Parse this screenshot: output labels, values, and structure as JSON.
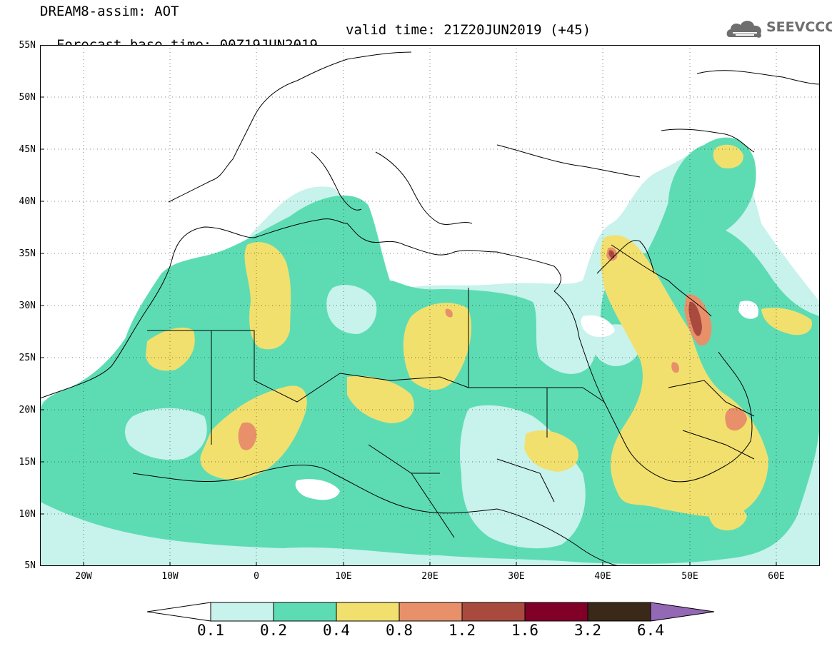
{
  "header": {
    "title": "DREAM8-assim: AOT",
    "base_time": "Forecast base time: 00Z19JUN2019",
    "valid_time": "valid time: 21Z20JUN2019 (+45)"
  },
  "logo": {
    "text": "SEEVCCC",
    "icon": "cloud-icon",
    "color": "#6e6e6e"
  },
  "map": {
    "lon_range": [
      -25,
      65
    ],
    "lat_range": [
      5,
      55
    ],
    "lat_labels": [
      "55N",
      "50N",
      "45N",
      "40N",
      "35N",
      "30N",
      "25N",
      "20N",
      "15N",
      "10N",
      "5N"
    ],
    "lon_labels": [
      "20W",
      "10W",
      "0",
      "10E",
      "20E",
      "30E",
      "40E",
      "50E",
      "60E"
    ],
    "colors": {
      "c1": "#c8f2ec",
      "c2": "#5ddcb4",
      "c3": "#f2e06e",
      "c4": "#e8906a",
      "c5": "#a84a3e"
    }
  },
  "colorbar": {
    "levels": [
      "0.1",
      "0.2",
      "0.4",
      "0.8",
      "1.2",
      "1.6",
      "3.2",
      "6.4"
    ],
    "colors": [
      "#c8f2ec",
      "#5ddcb4",
      "#f2e06e",
      "#e8906a",
      "#a84a3e",
      "#800028",
      "#3a2818"
    ],
    "under_color": "#ffffff",
    "over_color": "#9368b4"
  }
}
